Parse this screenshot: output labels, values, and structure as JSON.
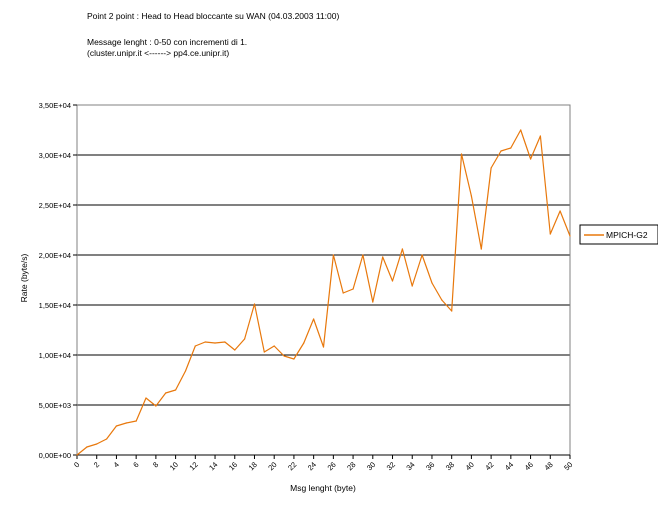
{
  "header": {
    "title": "Point 2 point : Head to Head bloccante su WAN (04.03.2003 11:00)",
    "line1": "Message lenght : 0-50 con incrementi di 1.",
    "line2": "(cluster.unipr.it    <------>   pp4.ce.unipr.it)"
  },
  "chart_data": {
    "type": "line",
    "title": "Point 2 point : Head to Head bloccante su WAN (04.03.2003 11:00)",
    "xlabel": "Msg lenght (byte)",
    "ylabel": "Rate (byte/s)",
    "xlim": [
      0,
      50
    ],
    "ylim": [
      0,
      35000
    ],
    "y_ticks": [
      0,
      5000,
      10000,
      15000,
      20000,
      25000,
      30000,
      35000
    ],
    "y_tick_labels": [
      "0,00E+00",
      "5,00E+03",
      "1,00E+04",
      "1,50E+04",
      "2,00E+04",
      "2,50E+04",
      "3,00E+04",
      "3,50E+04"
    ],
    "x_tick_labels": [
      "0",
      "2",
      "4",
      "6",
      "8",
      "10",
      "12",
      "14",
      "16",
      "18",
      "20",
      "22",
      "24",
      "26",
      "28",
      "30",
      "32",
      "34",
      "36",
      "38",
      "40",
      "42",
      "44",
      "46",
      "48",
      "50"
    ],
    "grid": "horizontal",
    "legend_position": "right",
    "series": [
      {
        "name": "MPICH-G2",
        "color": "#e8780c",
        "x": [
          0,
          1,
          2,
          3,
          4,
          5,
          6,
          7,
          8,
          9,
          10,
          11,
          12,
          13,
          14,
          15,
          16,
          17,
          18,
          19,
          20,
          21,
          22,
          23,
          24,
          25,
          26,
          27,
          28,
          29,
          30,
          31,
          32,
          33,
          34,
          35,
          36,
          37,
          38,
          39,
          40,
          41,
          42,
          43,
          44,
          45,
          46,
          47,
          48,
          49,
          50
        ],
        "values": [
          0,
          800,
          1100,
          1600,
          2900,
          3200,
          3400,
          5700,
          4900,
          6200,
          6500,
          8400,
          10900,
          11300,
          11200,
          11300,
          10500,
          11600,
          15100,
          10300,
          10900,
          9900,
          9600,
          11200,
          13600,
          10800,
          20000,
          16200,
          16600,
          20000,
          15300,
          19800,
          17400,
          20600,
          16900,
          20000,
          17200,
          15500,
          14400,
          30100,
          25900,
          20600,
          28700,
          30400,
          30700,
          32500,
          29600,
          31900,
          22100,
          24400,
          21900
        ]
      }
    ]
  }
}
